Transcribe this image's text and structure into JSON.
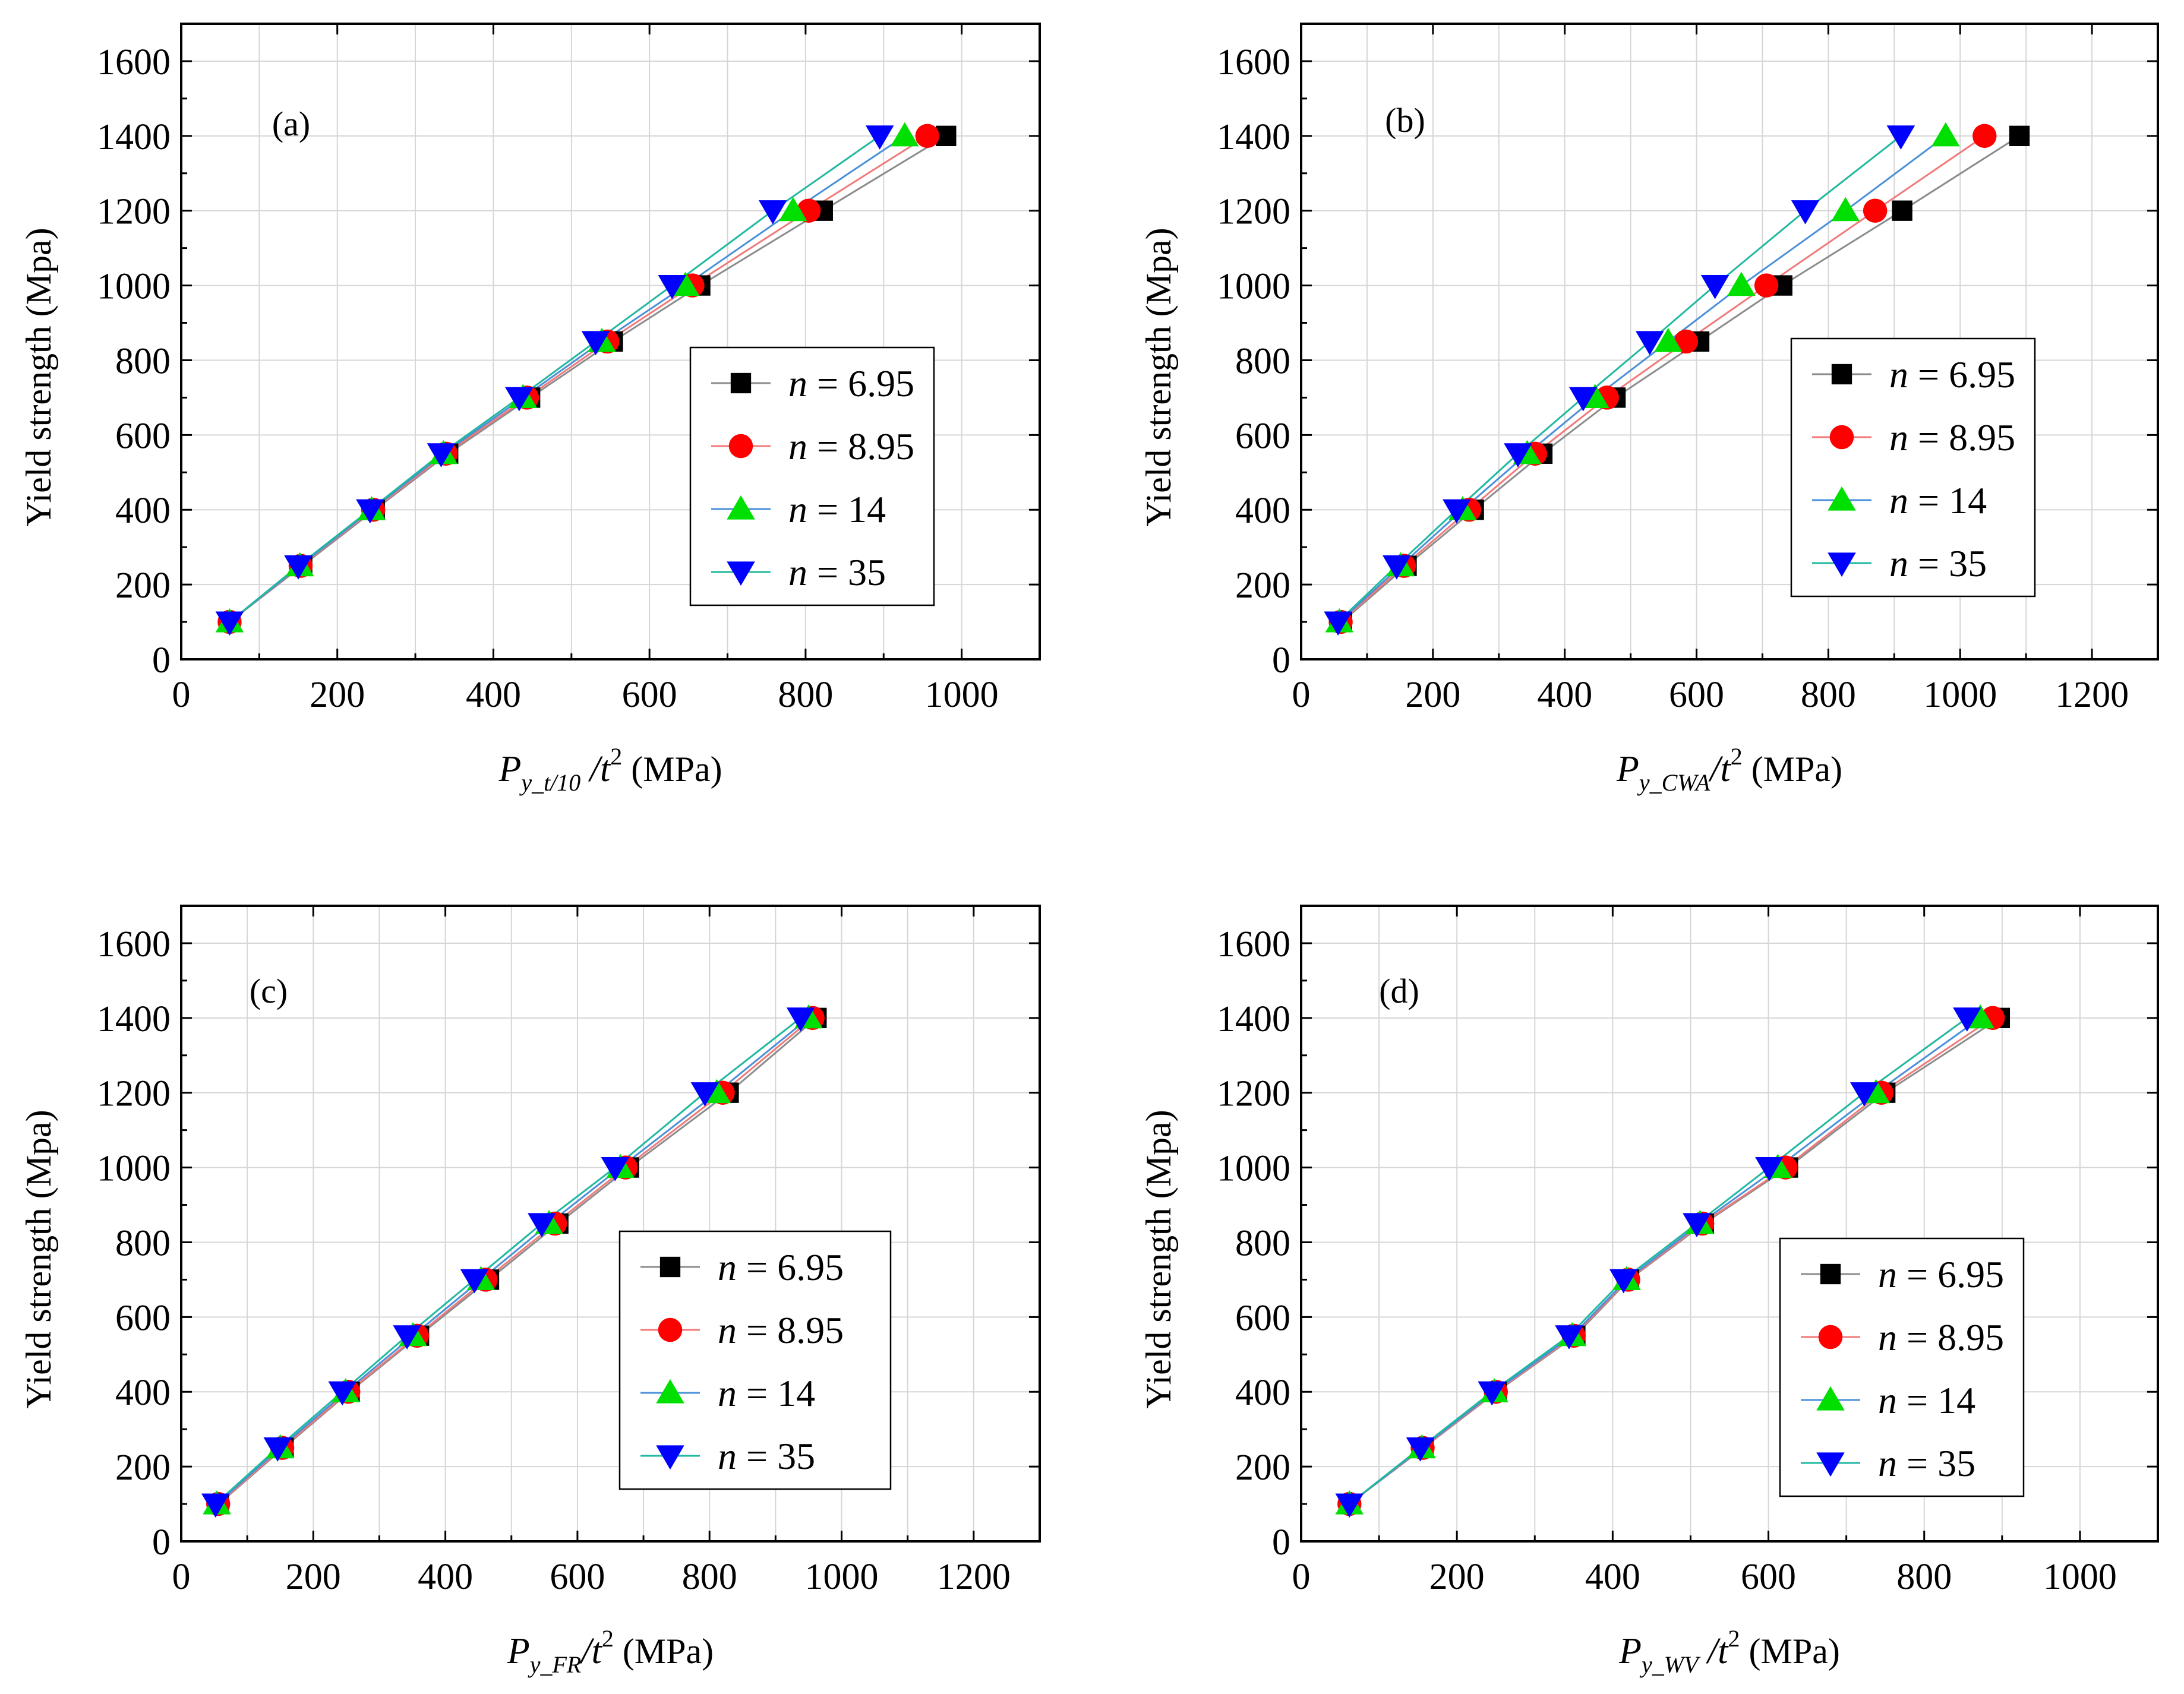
{
  "figure": {
    "y_axis_label": "Yield strength (Mpa)",
    "x_unit": "(MPa)",
    "legend_prefix": "n",
    "legend_equals": " = "
  },
  "chart_data": [
    {
      "type": "line",
      "panel_label": "(a)",
      "x_symbol": "P",
      "x_subscript": "y_t/10",
      "x_sub_gap": " ",
      "x_suffix": "/t",
      "x_superscript": "2",
      "xlabel": "P_y_t/10 /t^2 (MPa)",
      "ylabel": "Yield strength (Mpa)",
      "xlim": [
        0,
        1100
      ],
      "xticks": [
        0,
        200,
        400,
        600,
        800,
        1000
      ],
      "ylim": [
        0,
        1700
      ],
      "yticks": [
        0,
        200,
        400,
        600,
        800,
        1000,
        1200,
        1400,
        1600
      ],
      "grid": true,
      "legend_position": "right-middle",
      "series": [
        {
          "name": "n = 6.95",
          "n": "6.95",
          "marker": "square",
          "marker_color": "#000000",
          "line_color": "#8c8c8c",
          "x": [
            62,
            155,
            248,
            342,
            447,
            553,
            665,
            822,
            980
          ],
          "y": [
            100,
            250,
            400,
            550,
            700,
            850,
            1000,
            1200,
            1400
          ]
        },
        {
          "name": "n = 8.95",
          "n": "8.95",
          "marker": "circle",
          "marker_color": "#ff0000",
          "line_color": "#f07a7a",
          "x": [
            62,
            153,
            246,
            339,
            443,
            546,
            655,
            804,
            956
          ],
          "y": [
            100,
            250,
            400,
            550,
            700,
            850,
            1000,
            1200,
            1400
          ]
        },
        {
          "name": "n = 14",
          "n": "14",
          "marker": "triangle-up",
          "marker_color": "#00e000",
          "line_color": "#4a90d9",
          "x": [
            62,
            152,
            244,
            336,
            438,
            539,
            646,
            784,
            927
          ],
          "y": [
            100,
            250,
            400,
            550,
            700,
            850,
            1000,
            1200,
            1400
          ]
        },
        {
          "name": "n = 35",
          "n": "35",
          "marker": "triangle-down",
          "marker_color": "#0000ff",
          "line_color": "#20b8a0",
          "x": [
            62,
            150,
            242,
            333,
            433,
            531,
            629,
            758,
            895
          ],
          "y": [
            100,
            250,
            400,
            550,
            700,
            850,
            1000,
            1200,
            1400
          ]
        }
      ]
    },
    {
      "type": "line",
      "panel_label": "(b)",
      "x_symbol": "P",
      "x_subscript": "y_CWA",
      "x_sub_gap": "",
      "x_suffix": "/t",
      "x_superscript": "2",
      "xlabel": "P_y_CWA/t^2 (MPa)",
      "ylabel": "Yield strength (Mpa)",
      "xlim": [
        0,
        1300
      ],
      "xticks": [
        0,
        200,
        400,
        600,
        800,
        1000,
        1200
      ],
      "ylim": [
        0,
        1700
      ],
      "yticks": [
        0,
        200,
        400,
        600,
        800,
        1000,
        1200,
        1400,
        1600
      ],
      "grid": true,
      "legend_position": "right-middle",
      "series": [
        {
          "name": "n = 6.95",
          "n": "6.95",
          "marker": "square",
          "marker_color": "#000000",
          "line_color": "#8c8c8c",
          "x": [
            62,
            160,
            262,
            366,
            477,
            604,
            730,
            912,
            1090
          ],
          "y": [
            100,
            250,
            400,
            550,
            700,
            850,
            1000,
            1200,
            1400
          ]
        },
        {
          "name": "n = 8.95",
          "n": "8.95",
          "marker": "circle",
          "marker_color": "#ff0000",
          "line_color": "#f07a7a",
          "x": [
            60,
            156,
            255,
            355,
            464,
            584,
            706,
            871,
            1037
          ],
          "y": [
            100,
            250,
            400,
            550,
            700,
            850,
            1000,
            1200,
            1400
          ]
        },
        {
          "name": "n = 14",
          "n": "14",
          "marker": "triangle-up",
          "marker_color": "#00e000",
          "line_color": "#4a90d9",
          "x": [
            58,
            151,
            245,
            343,
            446,
            557,
            668,
            826,
            978
          ],
          "y": [
            100,
            250,
            400,
            550,
            700,
            850,
            1000,
            1200,
            1400
          ]
        },
        {
          "name": "n = 35",
          "n": "35",
          "marker": "triangle-down",
          "marker_color": "#0000ff",
          "line_color": "#20b8a0",
          "x": [
            56,
            145,
            236,
            329,
            428,
            529,
            628,
            765,
            910
          ],
          "y": [
            100,
            250,
            400,
            550,
            700,
            850,
            1000,
            1200,
            1400
          ]
        }
      ]
    },
    {
      "type": "line",
      "panel_label": "(c)",
      "x_symbol": "P",
      "x_subscript": "y_FR",
      "x_sub_gap": "",
      "x_suffix": "/t",
      "x_superscript": "2",
      "xlabel": "P_y_FR/t^2 (MPa)",
      "ylabel": "Yield strength (Mpa)",
      "xlim": [
        0,
        1300
      ],
      "xticks": [
        0,
        200,
        400,
        600,
        800,
        1000,
        1200
      ],
      "ylim": [
        0,
        1700
      ],
      "yticks": [
        0,
        200,
        400,
        600,
        800,
        1000,
        1200,
        1400,
        1600
      ],
      "grid": true,
      "legend_position": "right-middle",
      "series": [
        {
          "name": "n = 6.95",
          "n": "6.95",
          "marker": "square",
          "marker_color": "#000000",
          "line_color": "#8c8c8c",
          "x": [
            57,
            155,
            255,
            360,
            466,
            571,
            678,
            829,
            962
          ],
          "y": [
            100,
            250,
            400,
            550,
            700,
            850,
            1000,
            1200,
            1400
          ]
        },
        {
          "name": "n = 8.95",
          "n": "8.95",
          "marker": "circle",
          "marker_color": "#ff0000",
          "line_color": "#f07a7a",
          "x": [
            56,
            153,
            253,
            357,
            461,
            566,
            673,
            820,
            956
          ],
          "y": [
            100,
            250,
            400,
            550,
            700,
            850,
            1000,
            1200,
            1400
          ]
        },
        {
          "name": "n = 14",
          "n": "14",
          "marker": "triangle-up",
          "marker_color": "#00e000",
          "line_color": "#4a90d9",
          "x": [
            54,
            150,
            249,
            351,
            454,
            557,
            665,
            811,
            950
          ],
          "y": [
            100,
            250,
            400,
            550,
            700,
            850,
            1000,
            1200,
            1400
          ]
        },
        {
          "name": "n = 35",
          "n": "35",
          "marker": "triangle-down",
          "marker_color": "#0000ff",
          "line_color": "#20b8a0",
          "x": [
            52,
            146,
            244,
            342,
            444,
            546,
            657,
            793,
            938
          ],
          "y": [
            100,
            250,
            400,
            550,
            700,
            850,
            1000,
            1200,
            1400
          ]
        }
      ]
    },
    {
      "type": "line",
      "panel_label": "(d)",
      "x_symbol": "P",
      "x_subscript": "y_WV",
      "x_sub_gap": " ",
      "x_suffix": "/t",
      "x_superscript": "2",
      "xlabel": "P_y_WV /t^2 (MPa)",
      "ylabel": "Yield strength (Mpa)",
      "xlim": [
        0,
        1100
      ],
      "xticks": [
        0,
        200,
        400,
        600,
        800,
        1000
      ],
      "ylim": [
        0,
        1700
      ],
      "yticks": [
        0,
        200,
        400,
        600,
        800,
        1000,
        1200,
        1400,
        1600
      ],
      "grid": true,
      "legend_position": "right-middle",
      "series": [
        {
          "name": "n = 6.95",
          "n": "6.95",
          "marker": "square",
          "marker_color": "#000000",
          "line_color": "#8c8c8c",
          "x": [
            62,
            157,
            251,
            352,
            421,
            517,
            625,
            750,
            897
          ],
          "y": [
            100,
            250,
            400,
            550,
            700,
            850,
            1000,
            1200,
            1400
          ]
        },
        {
          "name": "n = 8.95",
          "n": "8.95",
          "marker": "circle",
          "marker_color": "#ff0000",
          "line_color": "#f07a7a",
          "x": [
            62,
            156,
            250,
            350,
            420,
            515,
            622,
            745,
            888
          ],
          "y": [
            100,
            250,
            400,
            550,
            700,
            850,
            1000,
            1200,
            1400
          ]
        },
        {
          "name": "n = 14",
          "n": "14",
          "marker": "triangle-up",
          "marker_color": "#00e000",
          "line_color": "#4a90d9",
          "x": [
            62,
            155,
            248,
            348,
            418,
            512,
            612,
            738,
            872
          ],
          "y": [
            100,
            250,
            400,
            550,
            700,
            850,
            1000,
            1200,
            1400
          ]
        },
        {
          "name": "n = 35",
          "n": "35",
          "marker": "triangle-down",
          "marker_color": "#0000ff",
          "line_color": "#20b8a0",
          "x": [
            62,
            153,
            245,
            344,
            414,
            508,
            601,
            723,
            855
          ],
          "y": [
            100,
            250,
            400,
            550,
            700,
            850,
            1000,
            1200,
            1400
          ]
        }
      ]
    }
  ]
}
